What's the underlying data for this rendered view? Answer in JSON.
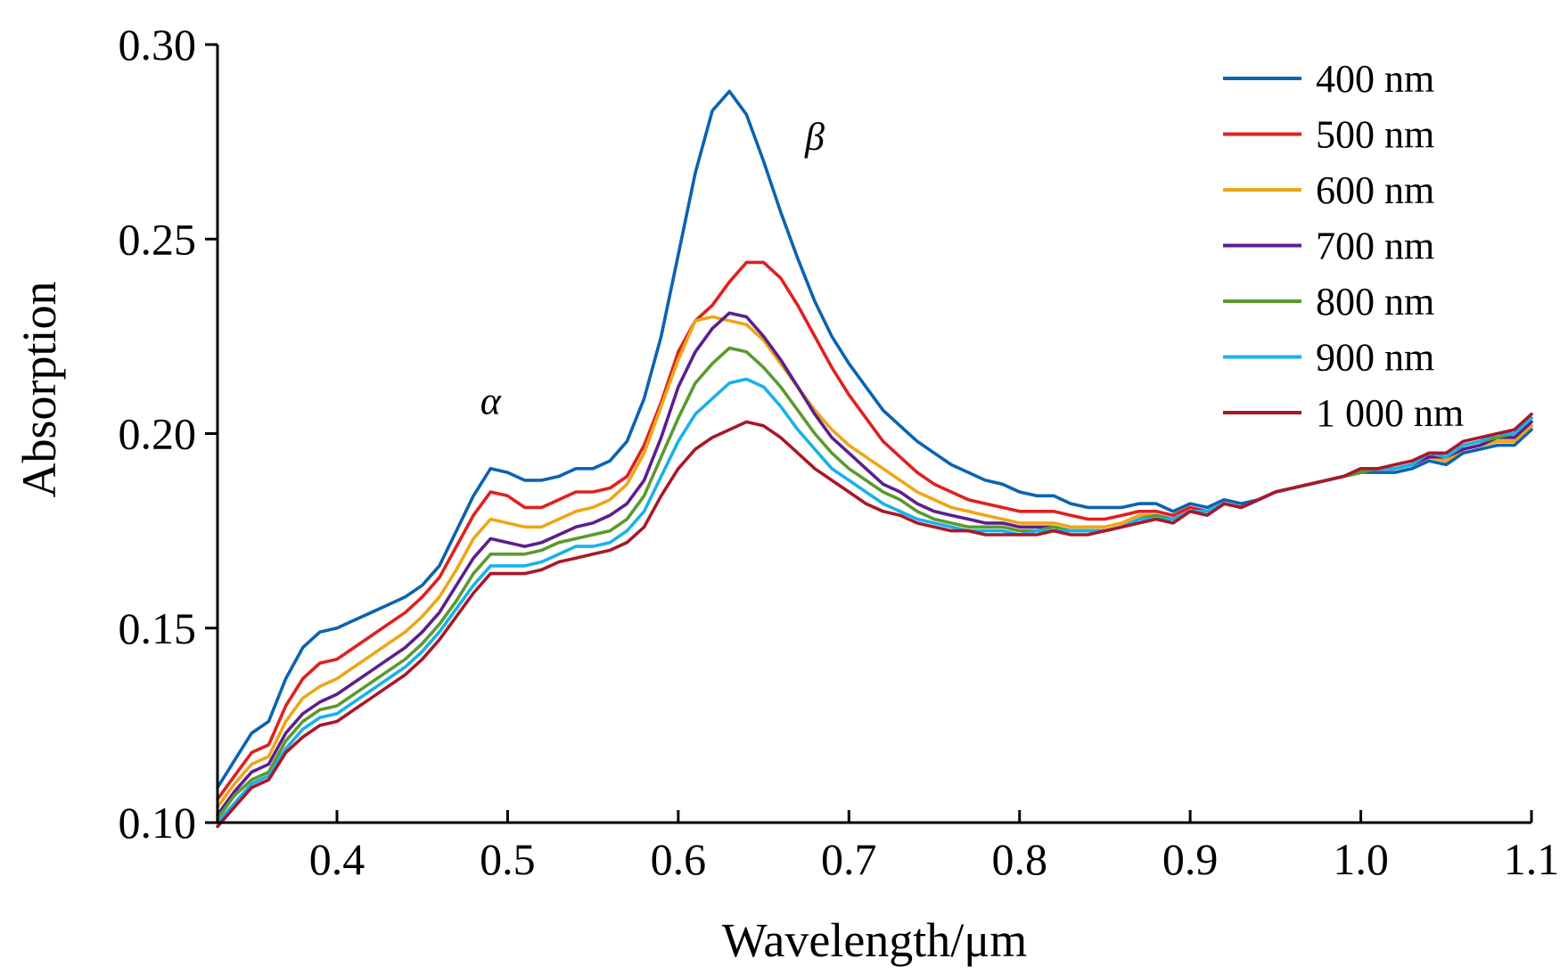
{
  "chart_data": {
    "type": "line",
    "title": "",
    "xlabel": "Wavelength/μm",
    "ylabel": "Absorption",
    "xlim": [
      0.33,
      1.1
    ],
    "ylim": [
      0.1,
      0.3
    ],
    "grid": false,
    "legend_position": "top-right",
    "x_ticks": [
      "0.4",
      "0.5",
      "0.6",
      "0.7",
      "0.8",
      "0.9",
      "1.0",
      "1.1"
    ],
    "y_ticks": [
      "0.10",
      "0.15",
      "0.20",
      "0.25",
      "0.30"
    ],
    "annotations": [
      {
        "text": "α",
        "x": 0.49,
        "y": 0.205
      },
      {
        "text": "β",
        "x": 0.68,
        "y": 0.273
      }
    ],
    "x": [
      0.33,
      0.34,
      0.35,
      0.36,
      0.37,
      0.38,
      0.39,
      0.4,
      0.41,
      0.42,
      0.43,
      0.44,
      0.45,
      0.46,
      0.47,
      0.48,
      0.49,
      0.5,
      0.51,
      0.52,
      0.53,
      0.54,
      0.55,
      0.56,
      0.57,
      0.58,
      0.59,
      0.6,
      0.61,
      0.62,
      0.63,
      0.64,
      0.65,
      0.66,
      0.67,
      0.68,
      0.69,
      0.7,
      0.71,
      0.72,
      0.73,
      0.74,
      0.75,
      0.76,
      0.77,
      0.78,
      0.79,
      0.8,
      0.81,
      0.82,
      0.83,
      0.84,
      0.85,
      0.86,
      0.87,
      0.88,
      0.89,
      0.9,
      0.91,
      0.92,
      0.93,
      0.94,
      0.95,
      0.96,
      0.97,
      0.98,
      0.99,
      1.0,
      1.01,
      1.02,
      1.03,
      1.04,
      1.05,
      1.06,
      1.07,
      1.08,
      1.09,
      1.1
    ],
    "series": [
      {
        "name": "400 nm",
        "color": "#0a63b0",
        "values": [
          0.109,
          0.116,
          0.123,
          0.126,
          0.137,
          0.145,
          0.149,
          0.15,
          0.152,
          0.154,
          0.156,
          0.158,
          0.161,
          0.166,
          0.175,
          0.184,
          0.191,
          0.19,
          0.188,
          0.188,
          0.189,
          0.191,
          0.191,
          0.193,
          0.198,
          0.209,
          0.225,
          0.246,
          0.267,
          0.283,
          0.288,
          0.282,
          0.27,
          0.257,
          0.245,
          0.234,
          0.225,
          0.218,
          0.212,
          0.206,
          0.202,
          0.198,
          0.195,
          0.192,
          0.19,
          0.188,
          0.187,
          0.185,
          0.184,
          0.184,
          0.182,
          0.181,
          0.181,
          0.181,
          0.182,
          0.182,
          0.18,
          0.182,
          0.181,
          0.183,
          0.182,
          0.183,
          0.185,
          0.186,
          0.187,
          0.188,
          0.189,
          0.19,
          0.19,
          0.19,
          0.191,
          0.193,
          0.192,
          0.195,
          0.196,
          0.197,
          0.197,
          0.201
        ]
      },
      {
        "name": "500 nm",
        "color": "#e02020",
        "values": [
          0.106,
          0.112,
          0.118,
          0.12,
          0.13,
          0.137,
          0.141,
          0.142,
          0.145,
          0.148,
          0.151,
          0.154,
          0.158,
          0.163,
          0.171,
          0.179,
          0.185,
          0.184,
          0.181,
          0.181,
          0.183,
          0.185,
          0.185,
          0.186,
          0.189,
          0.197,
          0.208,
          0.221,
          0.229,
          0.233,
          0.239,
          0.244,
          0.244,
          0.24,
          0.233,
          0.225,
          0.217,
          0.21,
          0.204,
          0.198,
          0.194,
          0.19,
          0.187,
          0.185,
          0.183,
          0.182,
          0.181,
          0.18,
          0.18,
          0.18,
          0.179,
          0.178,
          0.178,
          0.179,
          0.18,
          0.18,
          0.179,
          0.181,
          0.18,
          0.182,
          0.181,
          0.183,
          0.185,
          0.186,
          0.187,
          0.188,
          0.189,
          0.19,
          0.191,
          0.191,
          0.192,
          0.194,
          0.193,
          0.196,
          0.197,
          0.198,
          0.198,
          0.202
        ]
      },
      {
        "name": "600 nm",
        "color": "#eda616",
        "values": [
          0.104,
          0.11,
          0.115,
          0.117,
          0.126,
          0.132,
          0.135,
          0.137,
          0.14,
          0.143,
          0.146,
          0.149,
          0.153,
          0.158,
          0.165,
          0.173,
          0.178,
          0.177,
          0.176,
          0.176,
          0.178,
          0.18,
          0.181,
          0.183,
          0.187,
          0.195,
          0.207,
          0.219,
          0.229,
          0.23,
          0.229,
          0.228,
          0.224,
          0.218,
          0.212,
          0.206,
          0.201,
          0.197,
          0.194,
          0.191,
          0.188,
          0.185,
          0.183,
          0.181,
          0.18,
          0.179,
          0.178,
          0.177,
          0.177,
          0.177,
          0.176,
          0.176,
          0.176,
          0.177,
          0.179,
          0.179,
          0.178,
          0.18,
          0.18,
          0.182,
          0.181,
          0.183,
          0.185,
          0.186,
          0.187,
          0.188,
          0.189,
          0.19,
          0.191,
          0.191,
          0.192,
          0.194,
          0.193,
          0.196,
          0.197,
          0.198,
          0.198,
          0.202
        ]
      },
      {
        "name": "700 nm",
        "color": "#5b1f8e",
        "values": [
          0.102,
          0.108,
          0.113,
          0.115,
          0.123,
          0.128,
          0.131,
          0.133,
          0.136,
          0.139,
          0.142,
          0.145,
          0.149,
          0.154,
          0.161,
          0.168,
          0.173,
          0.172,
          0.171,
          0.172,
          0.174,
          0.176,
          0.177,
          0.179,
          0.182,
          0.188,
          0.199,
          0.212,
          0.221,
          0.227,
          0.231,
          0.23,
          0.225,
          0.219,
          0.212,
          0.205,
          0.199,
          0.195,
          0.191,
          0.187,
          0.185,
          0.182,
          0.18,
          0.179,
          0.178,
          0.177,
          0.177,
          0.176,
          0.176,
          0.176,
          0.175,
          0.175,
          0.175,
          0.176,
          0.178,
          0.179,
          0.178,
          0.18,
          0.18,
          0.182,
          0.181,
          0.183,
          0.185,
          0.186,
          0.187,
          0.188,
          0.189,
          0.19,
          0.191,
          0.191,
          0.192,
          0.194,
          0.194,
          0.196,
          0.197,
          0.199,
          0.199,
          0.203
        ]
      },
      {
        "name": "800 nm",
        "color": "#5a9a2e",
        "values": [
          0.101,
          0.107,
          0.111,
          0.113,
          0.121,
          0.126,
          0.129,
          0.13,
          0.133,
          0.136,
          0.139,
          0.142,
          0.146,
          0.151,
          0.157,
          0.164,
          0.169,
          0.169,
          0.169,
          0.17,
          0.172,
          0.173,
          0.174,
          0.175,
          0.178,
          0.184,
          0.194,
          0.204,
          0.213,
          0.218,
          0.222,
          0.221,
          0.217,
          0.212,
          0.206,
          0.2,
          0.195,
          0.191,
          0.188,
          0.185,
          0.183,
          0.18,
          0.178,
          0.177,
          0.176,
          0.176,
          0.176,
          0.175,
          0.175,
          0.176,
          0.175,
          0.175,
          0.175,
          0.176,
          0.178,
          0.179,
          0.178,
          0.18,
          0.18,
          0.182,
          0.181,
          0.183,
          0.185,
          0.186,
          0.187,
          0.188,
          0.189,
          0.19,
          0.191,
          0.191,
          0.192,
          0.195,
          0.194,
          0.197,
          0.198,
          0.199,
          0.2,
          0.204
        ]
      },
      {
        "name": "900 nm",
        "color": "#19b1ea",
        "values": [
          0.1,
          0.105,
          0.11,
          0.112,
          0.119,
          0.124,
          0.127,
          0.128,
          0.131,
          0.134,
          0.137,
          0.14,
          0.144,
          0.149,
          0.155,
          0.161,
          0.166,
          0.166,
          0.166,
          0.167,
          0.169,
          0.171,
          0.171,
          0.172,
          0.175,
          0.18,
          0.189,
          0.198,
          0.205,
          0.209,
          0.213,
          0.214,
          0.212,
          0.207,
          0.201,
          0.196,
          0.191,
          0.188,
          0.185,
          0.182,
          0.18,
          0.178,
          0.177,
          0.176,
          0.175,
          0.175,
          0.175,
          0.174,
          0.175,
          0.175,
          0.175,
          0.175,
          0.175,
          0.176,
          0.178,
          0.178,
          0.178,
          0.18,
          0.18,
          0.182,
          0.181,
          0.183,
          0.185,
          0.186,
          0.187,
          0.188,
          0.189,
          0.191,
          0.191,
          0.191,
          0.192,
          0.195,
          0.194,
          0.197,
          0.198,
          0.2,
          0.2,
          0.204
        ]
      },
      {
        "name": "1 000 nm",
        "color": "#aa1729",
        "values": [
          0.099,
          0.104,
          0.109,
          0.111,
          0.118,
          0.122,
          0.125,
          0.126,
          0.129,
          0.132,
          0.135,
          0.138,
          0.142,
          0.147,
          0.153,
          0.159,
          0.164,
          0.164,
          0.164,
          0.165,
          0.167,
          0.168,
          0.169,
          0.17,
          0.172,
          0.176,
          0.184,
          0.191,
          0.196,
          0.199,
          0.201,
          0.203,
          0.202,
          0.199,
          0.195,
          0.191,
          0.188,
          0.185,
          0.182,
          0.18,
          0.179,
          0.177,
          0.176,
          0.175,
          0.175,
          0.174,
          0.174,
          0.174,
          0.174,
          0.175,
          0.174,
          0.174,
          0.175,
          0.176,
          0.177,
          0.178,
          0.177,
          0.18,
          0.179,
          0.182,
          0.181,
          0.183,
          0.185,
          0.186,
          0.187,
          0.188,
          0.189,
          0.191,
          0.191,
          0.192,
          0.193,
          0.195,
          0.195,
          0.198,
          0.199,
          0.2,
          0.201,
          0.205
        ]
      }
    ]
  }
}
